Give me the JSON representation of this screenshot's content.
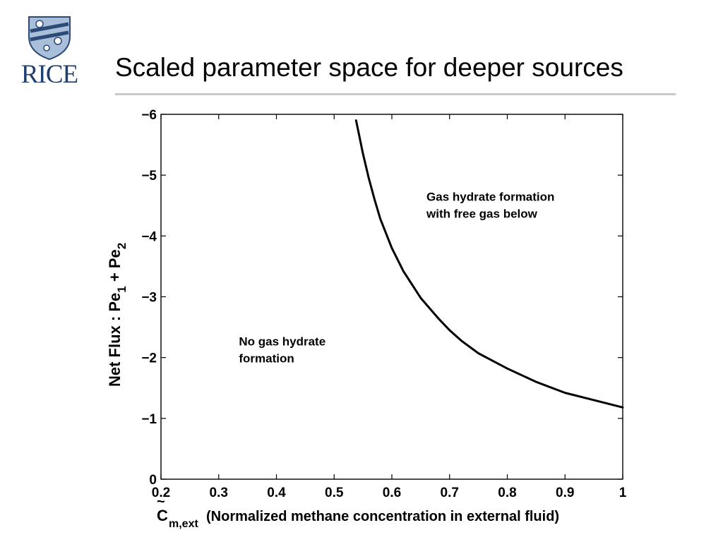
{
  "logo": {
    "text": "RICE",
    "shield_colors": {
      "fill": "#a9bfd9",
      "stroke": "#2b4a78"
    },
    "icon": "rice-shield-icon"
  },
  "slide": {
    "title": "Scaled parameter space for deeper sources"
  },
  "chart_data": {
    "type": "line",
    "title": "",
    "xlabel": {
      "symbol": "C",
      "tilde": "~",
      "subscript": "m,ext",
      "text": " (Normalized methane concentration in external fluid)"
    },
    "ylabel": {
      "pre": "Net Flux : Pe",
      "sub1": "1",
      "mid": " + Pe",
      "sub2": "2"
    },
    "xlim": [
      0.2,
      1
    ],
    "ylim": [
      0,
      -6
    ],
    "y_reversed": true,
    "x_ticks": [
      0.2,
      0.3,
      0.4,
      0.5,
      0.6,
      0.7,
      0.8,
      0.9,
      1
    ],
    "x_tick_labels": [
      "0.2",
      "0.3",
      "0.4",
      "0.5",
      "0.6",
      "0.7",
      "0.8",
      "0.9",
      "1"
    ],
    "y_ticks": [
      0,
      -1,
      -2,
      -3,
      -4,
      -5,
      -6
    ],
    "y_tick_labels": [
      "0",
      "−1",
      "−2",
      "−3",
      "−4",
      "−5",
      "−6"
    ],
    "grid": false,
    "series": [
      {
        "color": "#000000",
        "x": [
          0.538,
          0.55,
          0.56,
          0.57,
          0.58,
          0.6,
          0.62,
          0.65,
          0.68,
          0.7,
          0.72,
          0.75,
          0.78,
          0.8,
          0.85,
          0.9,
          0.95,
          1.0
        ],
        "y": [
          -5.9,
          -5.35,
          -4.95,
          -4.6,
          -4.28,
          -3.8,
          -3.42,
          -2.98,
          -2.65,
          -2.45,
          -2.28,
          -2.07,
          -1.92,
          -1.82,
          -1.6,
          -1.42,
          -1.3,
          -1.18
        ]
      }
    ],
    "annotations": [
      {
        "lines": [
          "Gas hydrate formation",
          "with free gas below"
        ],
        "x": 0.66,
        "y": -4.58
      },
      {
        "lines": [
          "No gas hydrate",
          "formation"
        ],
        "x": 0.335,
        "y": -2.2
      }
    ]
  }
}
